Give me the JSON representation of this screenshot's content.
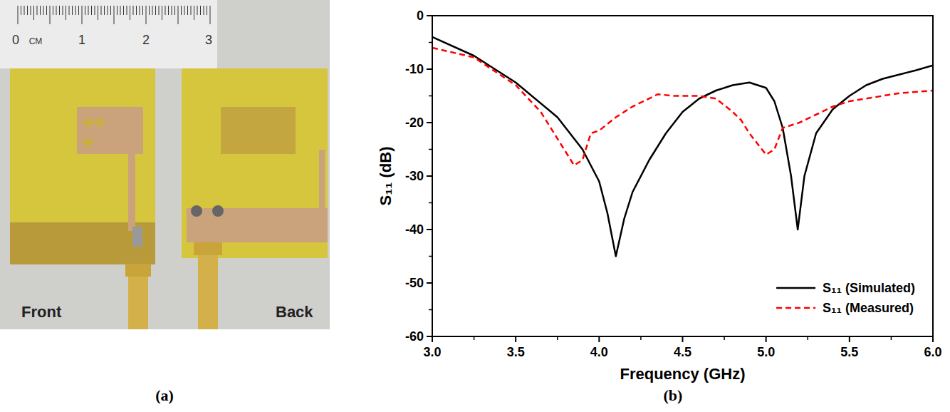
{
  "chart_data": {
    "type": "line",
    "x_label": "Frequency (GHz)",
    "y_label": "S₁₁ (dB)",
    "xlim": [
      3.0,
      6.0
    ],
    "ylim": [
      -60,
      0
    ],
    "xticks": [
      {
        "value": 3.0,
        "label": "3.0"
      },
      {
        "value": 3.5,
        "label": "3.5"
      },
      {
        "value": 4.0,
        "label": "4.0"
      },
      {
        "value": 4.5,
        "label": "4.5"
      },
      {
        "value": 5.0,
        "label": "5.0"
      },
      {
        "value": 5.5,
        "label": "5.5"
      },
      {
        "value": 6.0,
        "label": "6.0"
      }
    ],
    "yticks": [
      0,
      -10,
      -20,
      -30,
      -40,
      -50,
      -60
    ],
    "grid": false,
    "legend": "lower right",
    "series": [
      {
        "name": "S₁₁ (Simulated)",
        "color": "#000000",
        "line_style": "solid",
        "x": [
          3.0,
          3.25,
          3.5,
          3.75,
          3.9,
          4.0,
          4.05,
          4.1,
          4.15,
          4.2,
          4.3,
          4.4,
          4.5,
          4.6,
          4.7,
          4.8,
          4.9,
          5.0,
          5.05,
          5.1,
          5.15,
          5.19,
          5.23,
          5.3,
          5.4,
          5.5,
          5.6,
          5.7,
          5.8,
          5.9,
          6.0
        ],
        "values": [
          -4,
          -7.5,
          -12.5,
          -19,
          -25,
          -31,
          -37,
          -45,
          -38,
          -33,
          -27,
          -22,
          -18,
          -15.5,
          -14,
          -13,
          -12.5,
          -13.5,
          -16,
          -21,
          -30,
          -40,
          -30,
          -22,
          -17.5,
          -15,
          -13,
          -11.8,
          -11,
          -10.2,
          -9.3
        ]
      },
      {
        "name": "S₁₁ (Measured)",
        "color": "#ff0000",
        "line_style": "dashed",
        "x": [
          3.0,
          3.25,
          3.5,
          3.65,
          3.75,
          3.85,
          3.9,
          3.95,
          4.0,
          4.1,
          4.2,
          4.3,
          4.35,
          4.45,
          4.6,
          4.7,
          4.8,
          4.85,
          4.9,
          4.95,
          5.0,
          5.05,
          5.1,
          5.2,
          5.3,
          5.4,
          5.5,
          5.6,
          5.7,
          5.8,
          6.0
        ],
        "values": [
          -6,
          -7.8,
          -13,
          -18,
          -23,
          -28,
          -27,
          -22,
          -21.5,
          -19,
          -17,
          -15.5,
          -14.7,
          -15,
          -15,
          -15.5,
          -18,
          -19.5,
          -22,
          -24,
          -26,
          -25,
          -21,
          -20,
          -18.5,
          -17,
          -16,
          -15.5,
          -15,
          -14.5,
          -14
        ]
      }
    ]
  },
  "photo": {
    "ruler_labels": [
      "0",
      "CM",
      "1",
      "2",
      "3"
    ],
    "front_label": "Front",
    "back_label": "Back"
  },
  "panel_labels": [
    "(a)",
    "(b)"
  ]
}
